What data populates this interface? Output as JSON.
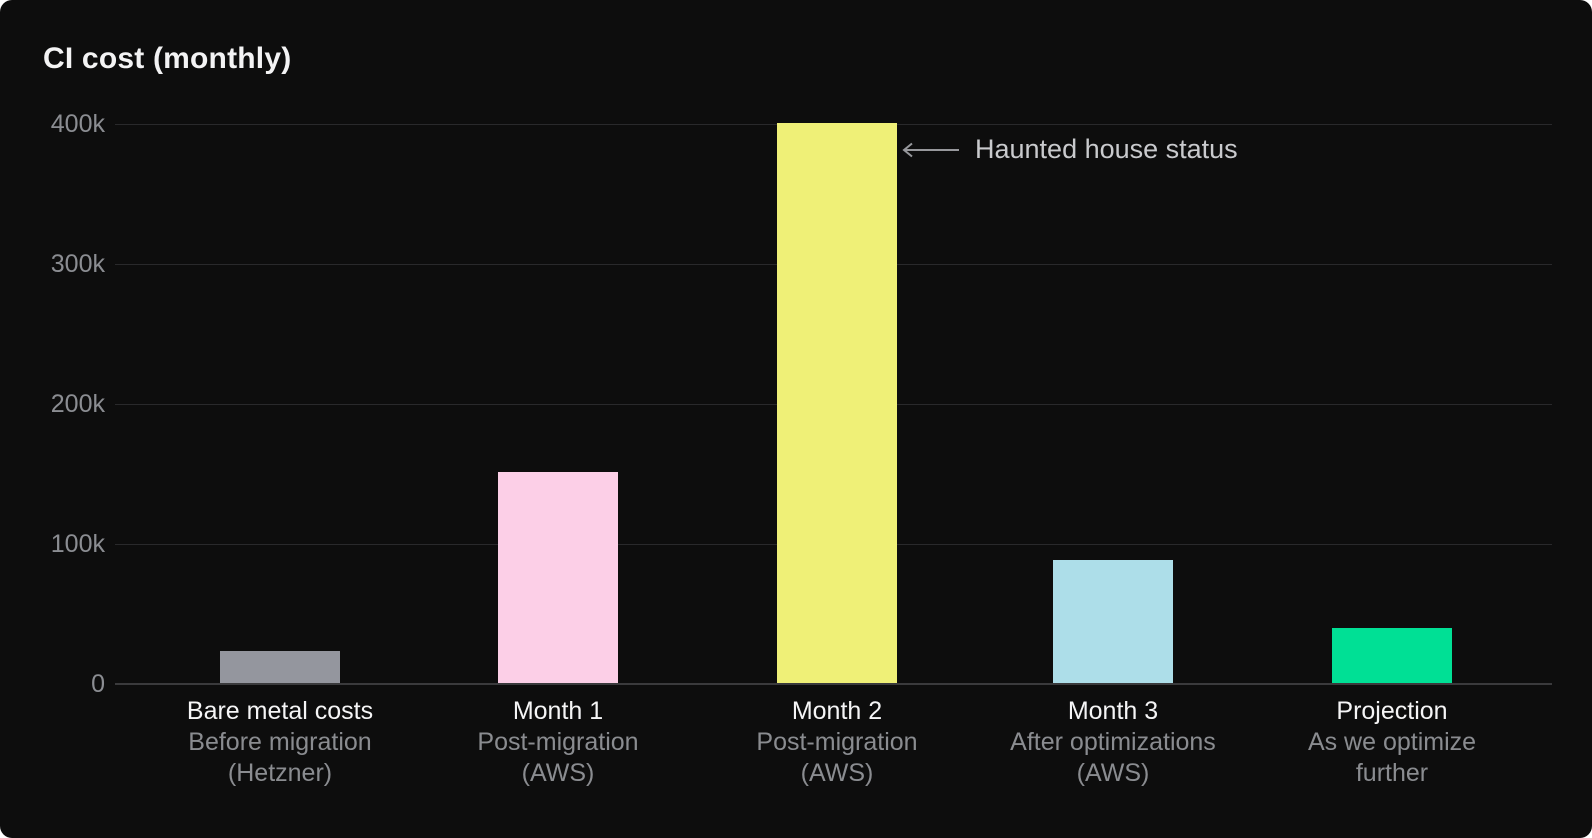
{
  "chart": {
    "title": "CI cost (monthly)",
    "y_ticks_top_to_bottom": [
      "400k",
      "300k",
      "200k",
      "100k",
      "0"
    ],
    "annotation": {
      "text": "Haunted house status"
    },
    "columns": [
      {
        "label": "Bare metal costs",
        "subline1": "Before migration",
        "subline2": "(Hetzner)"
      },
      {
        "label": "Month 1",
        "subline1": "Post-migration",
        "subline2": "(AWS)"
      },
      {
        "label": "Month 2",
        "subline1": "Post-migration",
        "subline2": "(AWS)"
      },
      {
        "label": "Month 3",
        "subline1": "After optimizations",
        "subline2": "(AWS)"
      },
      {
        "label": "Projection",
        "subline1": "As we optimize",
        "subline2": "further"
      }
    ]
  },
  "chart_data": {
    "type": "bar",
    "title": "CI cost (monthly)",
    "categories": [
      "Bare metal costs",
      "Month 1",
      "Month 2",
      "Month 3",
      "Projection"
    ],
    "category_descriptions": [
      "Before migration (Hetzner)",
      "Post-migration (AWS)",
      "Post-migration (AWS)",
      "After optimizations (AWS)",
      "As we optimize further"
    ],
    "values": [
      23000,
      151000,
      400000,
      88000,
      39000
    ],
    "bar_colors": [
      "#94969E",
      "#FCCFE7",
      "#EFF077",
      "#ADDEE9",
      "#00E095"
    ],
    "ylim": [
      0,
      400000
    ],
    "ytick_labels": [
      "0",
      "100k",
      "200k",
      "300k",
      "400k"
    ],
    "xlabel": "",
    "ylabel": "",
    "grid": true,
    "legend": false,
    "annotation": {
      "text": "Haunted house status",
      "points_to": "Month 2",
      "value_pointed": 400000
    }
  },
  "colors": {
    "background": "#0D0D0D",
    "gridline": "#29292B",
    "axis_text": "#8B8D92",
    "title_text": "#F3F3F4",
    "annotation_text": "#C9CACD"
  }
}
